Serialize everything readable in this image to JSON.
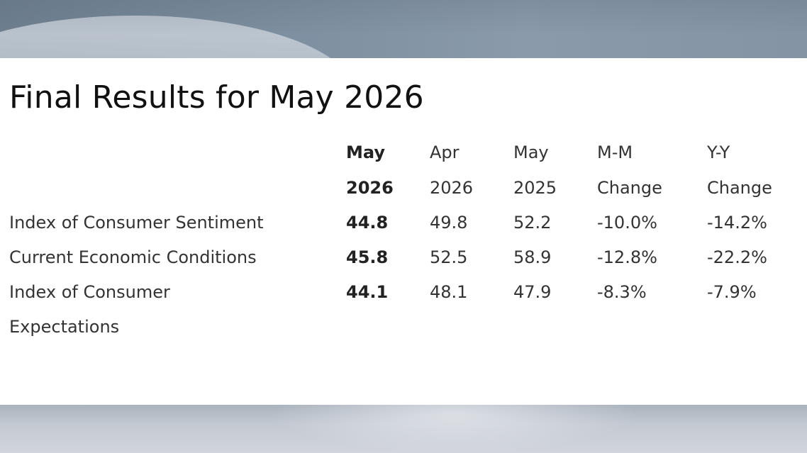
{
  "title": "Final Results for May 2026",
  "table": {
    "headers": [
      {
        "line1": "May",
        "line2": "2026"
      },
      {
        "line1": "Apr",
        "line2": "2026"
      },
      {
        "line1": "May",
        "line2": "2025"
      },
      {
        "line1": "M-M",
        "line2": "Change"
      },
      {
        "line1": "Y-Y",
        "line2": "Change"
      }
    ],
    "rows": [
      {
        "label": "Index of Consumer Sentiment",
        "values": [
          "44.8",
          "49.8",
          "52.2",
          "-10.0%",
          "-14.2%"
        ]
      },
      {
        "label": "Current Economic Conditions",
        "values": [
          "45.8",
          "52.5",
          "58.9",
          "-12.8%",
          "-22.2%"
        ]
      },
      {
        "label_line1": "Index of Consumer",
        "label_line2": "Expectations",
        "values": [
          "44.1",
          "48.1",
          "47.9",
          "-8.3%",
          "-7.9%"
        ]
      }
    ]
  },
  "colors": {
    "banner": "#7d8fa0",
    "text": "#333333",
    "title": "#111111",
    "bottom_band": "#c3c9d1"
  }
}
